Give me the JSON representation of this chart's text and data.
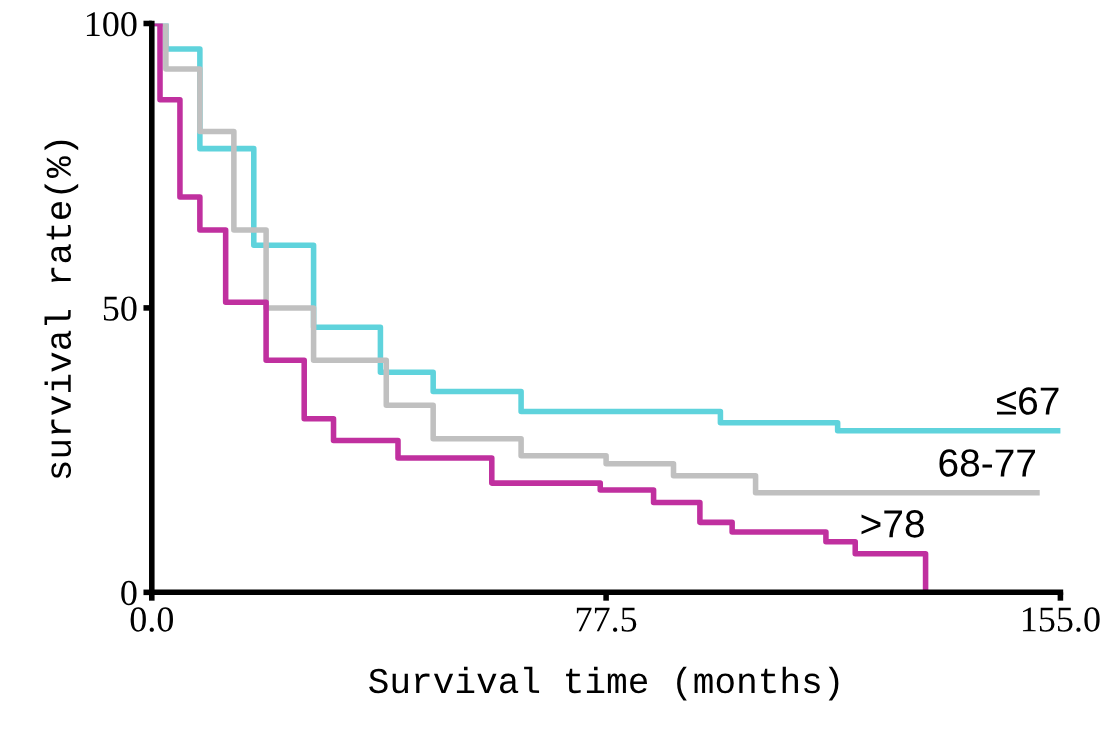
{
  "chart_data": {
    "type": "step",
    "xlabel": "Survival time (months)",
    "ylabel": "survival rate(%)",
    "xlim": [
      0,
      155
    ],
    "xticks": [
      {
        "value": 0,
        "label": "0.0"
      },
      {
        "value": 77.5,
        "label": "77.5"
      },
      {
        "value": 155,
        "label": "155.0"
      }
    ],
    "ylim": [
      0,
      100
    ],
    "yticks": [
      0,
      50,
      100
    ],
    "grid": false,
    "legend": false,
    "line_style": "solid",
    "series": [
      {
        "name": "≤67",
        "color": "#5fd3dc",
        "x": [
          0,
          2.4,
          8.2,
          17.4,
          27.6,
          39,
          48,
          63,
          97,
          117,
          155
        ],
        "values": [
          100,
          95.5,
          78,
          61,
          46.6,
          38.7,
          35.3,
          31.8,
          29.8,
          28.4,
          28.4
        ]
      },
      {
        "name": "68-77",
        "color": "#c0c0c0",
        "x": [
          0,
          2.4,
          8.2,
          14,
          19.5,
          27.6,
          40,
          48,
          63,
          77.5,
          89,
          103,
          151
        ],
        "values": [
          100,
          92,
          81,
          63.7,
          50,
          40.8,
          32.9,
          27,
          24,
          22.6,
          20.5,
          17.5,
          17.5
        ]
      },
      {
        "name": ">78",
        "color": "#c0309f",
        "x": [
          0,
          1.4,
          4.8,
          8.2,
          12.6,
          19.5,
          26,
          31,
          42,
          58,
          76.5,
          85.6,
          93.5,
          99,
          115,
          120,
          132
        ],
        "values": [
          100,
          86.6,
          69.5,
          63.7,
          51,
          40.8,
          30.5,
          26.7,
          23.6,
          19.2,
          18,
          15.8,
          12.3,
          10.6,
          8.9,
          6.8,
          0
        ]
      }
    ]
  }
}
